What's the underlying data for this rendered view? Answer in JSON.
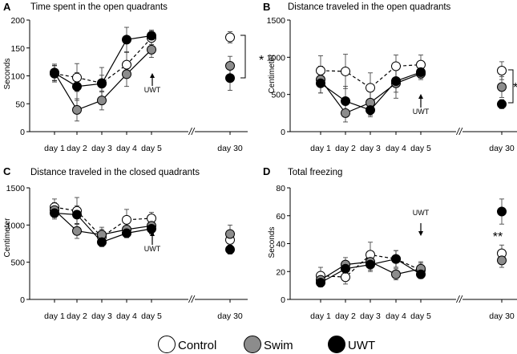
{
  "figure": {
    "x_categories": [
      "day 1",
      "day 2",
      "day 3",
      "day 4",
      "day 5",
      "day 30"
    ],
    "break_marker": "//",
    "legend": [
      {
        "name": "Control",
        "fill": "#ffffff"
      },
      {
        "name": "Swim",
        "fill": "#8c8c8c"
      },
      {
        "name": "UWT",
        "fill": "#000000"
      }
    ]
  },
  "chart_data": [
    {
      "panel": "A",
      "type": "line",
      "title": "Time spent in the open quadrants",
      "ylabel": "Seconds",
      "ylim": [
        0,
        200
      ],
      "yticks": [
        0,
        50,
        100,
        150,
        200
      ],
      "categories": [
        "day 1",
        "day 2",
        "day 3",
        "day 4",
        "day 5",
        "day 30"
      ],
      "series": [
        {
          "name": "Control",
          "values": [
            104,
            97,
            87,
            120,
            168,
            169
          ],
          "errors": [
            15,
            25,
            28,
            22,
            12,
            10
          ]
        },
        {
          "name": "Swim",
          "values": [
            106,
            39,
            56,
            103,
            147,
            118
          ],
          "errors": [
            15,
            20,
            17,
            22,
            14,
            17
          ]
        },
        {
          "name": "UWT",
          "values": [
            105,
            81,
            86,
            165,
            172,
            96
          ],
          "errors": [
            13,
            25,
            15,
            22,
            10,
            22
          ]
        }
      ],
      "annotations": [
        {
          "text": "UWT",
          "at": "day 5"
        },
        {
          "text": "*",
          "at": "day 30"
        }
      ]
    },
    {
      "panel": "B",
      "type": "line",
      "title": "Distance traveled in the open quadrants",
      "ylabel": "Centimeter",
      "ylim": [
        0,
        1500
      ],
      "yticks": [
        0,
        500,
        1000,
        1500
      ],
      "categories": [
        "day 1",
        "day 2",
        "day 3",
        "day 4",
        "day 5",
        "day 30"
      ],
      "series": [
        {
          "name": "Control",
          "values": [
            820,
            810,
            590,
            880,
            900,
            820
          ],
          "errors": [
            200,
            230,
            200,
            150,
            130,
            120
          ]
        },
        {
          "name": "Swim",
          "values": [
            700,
            250,
            390,
            650,
            780,
            600
          ],
          "errors": [
            180,
            120,
            190,
            200,
            60,
            140
          ]
        },
        {
          "name": "UWT",
          "values": [
            650,
            410,
            290,
            680,
            800,
            370
          ],
          "errors": [
            130,
            200,
            70,
            150,
            100,
            60
          ]
        }
      ],
      "annotations": [
        {
          "text": "UWT",
          "at": "day 5"
        },
        {
          "text": "*",
          "at": "day 30"
        }
      ]
    },
    {
      "panel": "C",
      "type": "line",
      "title": "Distance traveled in the closed quadrants",
      "ylabel": "Centimeter",
      "ylim": [
        0,
        1500
      ],
      "yticks": [
        0,
        500,
        1000,
        1500
      ],
      "categories": [
        "day 1",
        "day 2",
        "day 3",
        "day 4",
        "day 5",
        "day 30"
      ],
      "series": [
        {
          "name": "Control",
          "values": [
            1240,
            1190,
            840,
            1070,
            1090,
            800
          ],
          "errors": [
            110,
            180,
            100,
            140,
            80,
            100
          ]
        },
        {
          "name": "Swim",
          "values": [
            1200,
            920,
            870,
            940,
            990,
            880
          ],
          "errors": [
            100,
            100,
            100,
            80,
            100,
            120
          ]
        },
        {
          "name": "UWT",
          "values": [
            1160,
            1140,
            770,
            890,
            950,
            670
          ],
          "errors": [
            80,
            120,
            60,
            60,
            70,
            60
          ]
        }
      ],
      "annotations": [
        {
          "text": "UWT",
          "at": "day 5"
        }
      ]
    },
    {
      "panel": "D",
      "type": "line",
      "title": "Total freezing",
      "ylabel": "Seconds",
      "ylim": [
        0,
        80
      ],
      "yticks": [
        0,
        20,
        40,
        60,
        80
      ],
      "categories": [
        "day 1",
        "day 2",
        "day 3",
        "day 4",
        "day 5",
        "day 30"
      ],
      "series": [
        {
          "name": "Control",
          "values": [
            17,
            16,
            32,
            29,
            21,
            33
          ],
          "errors": [
            6,
            5,
            9,
            6,
            5,
            6
          ]
        },
        {
          "name": "Swim",
          "values": [
            14,
            25,
            27,
            18,
            22,
            28
          ],
          "errors": [
            4,
            5,
            6,
            4,
            5,
            5
          ]
        },
        {
          "name": "UWT",
          "values": [
            12,
            22,
            25,
            29,
            18,
            63
          ],
          "errors": [
            3,
            5,
            5,
            6,
            3,
            9
          ]
        }
      ],
      "annotations": [
        {
          "text": "UWT",
          "at": "day 5"
        },
        {
          "text": "**",
          "at": "day 30"
        }
      ]
    }
  ]
}
